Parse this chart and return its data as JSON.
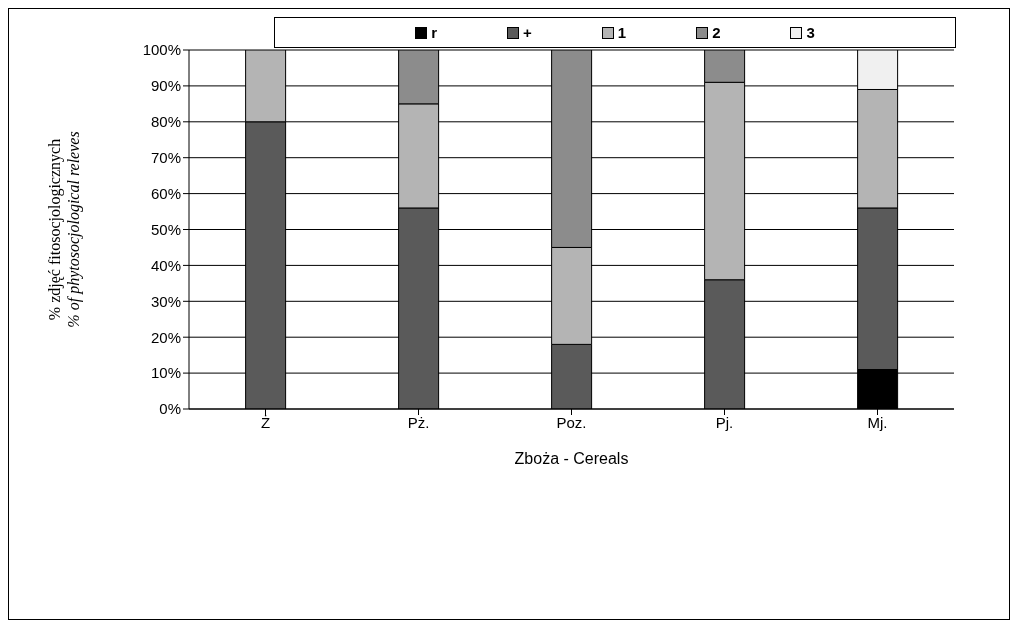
{
  "chart_data": {
    "type": "bar",
    "stacked": true,
    "xlabel": "Zboża - Cereals",
    "ylabel": "% zdjęć fitosocjologicznych\n% of phytosocjological releves",
    "categories": [
      "Ż",
      "Pż.",
      "Poz.",
      "Pj.",
      "Mj."
    ],
    "series": [
      {
        "name": "r",
        "color": "#000000",
        "values": [
          null,
          null,
          null,
          null,
          11
        ]
      },
      {
        "name": "+",
        "color": "#5a5a5a",
        "values": [
          80,
          56,
          18,
          36,
          45
        ]
      },
      {
        "name": "1",
        "color": "#b4b4b4",
        "values": [
          20,
          29,
          27,
          55,
          33
        ]
      },
      {
        "name": "2",
        "color": "#8c8c8c",
        "values": [
          null,
          15,
          55,
          9,
          null
        ]
      },
      {
        "name": "3",
        "color": "#f0f0f0",
        "values": [
          null,
          null,
          null,
          null,
          11
        ]
      }
    ],
    "ylim": [
      0,
      100
    ],
    "yticks": [
      {
        "value": 0,
        "label": "0%"
      },
      {
        "value": 10,
        "label": "10%"
      },
      {
        "value": 20,
        "label": "20%"
      },
      {
        "value": 30,
        "label": "30%"
      },
      {
        "value": 40,
        "label": "40%"
      },
      {
        "value": 50,
        "label": "50%"
      },
      {
        "value": 60,
        "label": "60%"
      },
      {
        "value": 70,
        "label": "70%"
      },
      {
        "value": 80,
        "label": "80%"
      },
      {
        "value": 90,
        "label": "90%"
      },
      {
        "value": 100,
        "label": "100%"
      }
    ],
    "grid": "y",
    "legend": "top"
  }
}
